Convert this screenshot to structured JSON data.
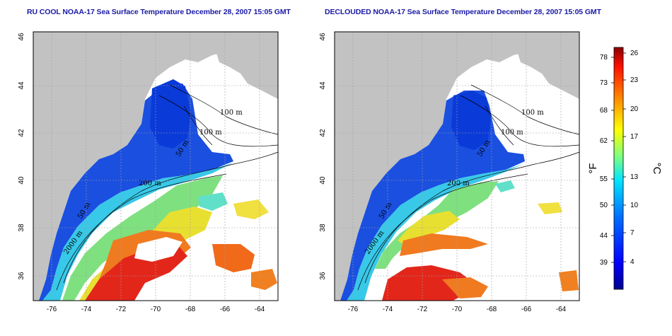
{
  "titles": {
    "left": "RU COOL NOAA-17 Sea Surface Temperature December 28, 2007 15:05 GMT",
    "right": "DECLOUDED NOAA-17 Sea Surface Temperature December 28, 2007 15:05 GMT"
  },
  "axes": {
    "lon_ticks": [
      "-76",
      "-74",
      "-72",
      "-70",
      "-68",
      "-66",
      "-64"
    ],
    "lat_ticks": [
      "46",
      "44",
      "42",
      "40",
      "38",
      "36"
    ]
  },
  "contour_labels": {
    "left": [
      "100 m",
      "100 m",
      "50 m",
      "200 m",
      "50 m",
      "2000 m"
    ],
    "right": [
      "100 m",
      "100 m",
      "50 m",
      "200 m",
      "50 m",
      "2000 m"
    ]
  },
  "colorbar": {
    "fahrenheit_ticks": [
      "78",
      "73",
      "68",
      "62",
      "55",
      "50",
      "44",
      "39"
    ],
    "celsius_ticks": [
      "26",
      "23",
      "20",
      "17",
      "13",
      "10",
      "7",
      "4"
    ],
    "f_unit": "°F",
    "c_unit": "°C",
    "colors": [
      "#00008f",
      "#0000ff",
      "#0080ff",
      "#00ffff",
      "#80ff80",
      "#ffff00",
      "#ff8000",
      "#ff0000",
      "#800000"
    ]
  },
  "colors": {
    "land": "#c2c2c2",
    "title": "#1a1aa6"
  }
}
